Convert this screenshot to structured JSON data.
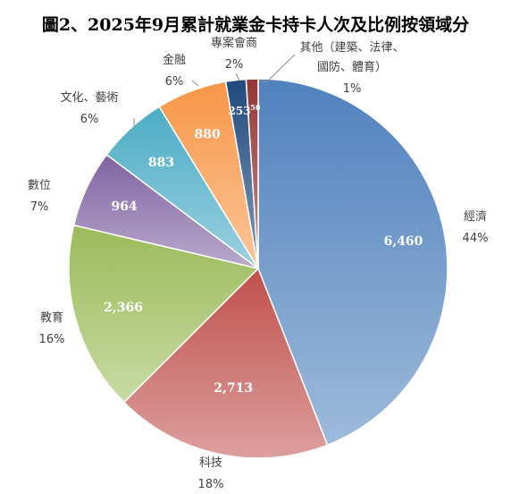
{
  "chart_data": {
    "type": "pie",
    "title": "圖2、2025年9月累計就業金卡持卡人次及比例按領域分",
    "start_angle": 0,
    "direction": "clockwise",
    "slices": [
      {
        "label": "經濟",
        "value": 6460,
        "value_label": "6,460",
        "percent": "44%",
        "color": "#4f81bd"
      },
      {
        "label": "科技",
        "value": 2713,
        "value_label": "2,713",
        "percent": "18%",
        "color": "#c0504d"
      },
      {
        "label": "教育",
        "value": 2366,
        "value_label": "2,366",
        "percent": "16%",
        "color": "#9bbb59"
      },
      {
        "label": "數位",
        "value": 964,
        "value_label": "964",
        "percent": "7%",
        "color": "#8064a2"
      },
      {
        "label": "文化、藝術",
        "value": 883,
        "value_label": "883",
        "percent": "6%",
        "color": "#4bacc6"
      },
      {
        "label": "金融",
        "value": 880,
        "value_label": "880",
        "percent": "6%",
        "color": "#f79646"
      },
      {
        "label": "專案會商",
        "value": 253,
        "value_label": "253",
        "percent": "2%",
        "color": "#1f497d"
      },
      {
        "label": "其他（建築、法律、國防、體育）",
        "label_lines": [
          "其他（建築、法律、",
          "國防、體育）"
        ],
        "value": 150,
        "value_label": "150",
        "percent": "1%",
        "color": "#943634"
      }
    ]
  }
}
